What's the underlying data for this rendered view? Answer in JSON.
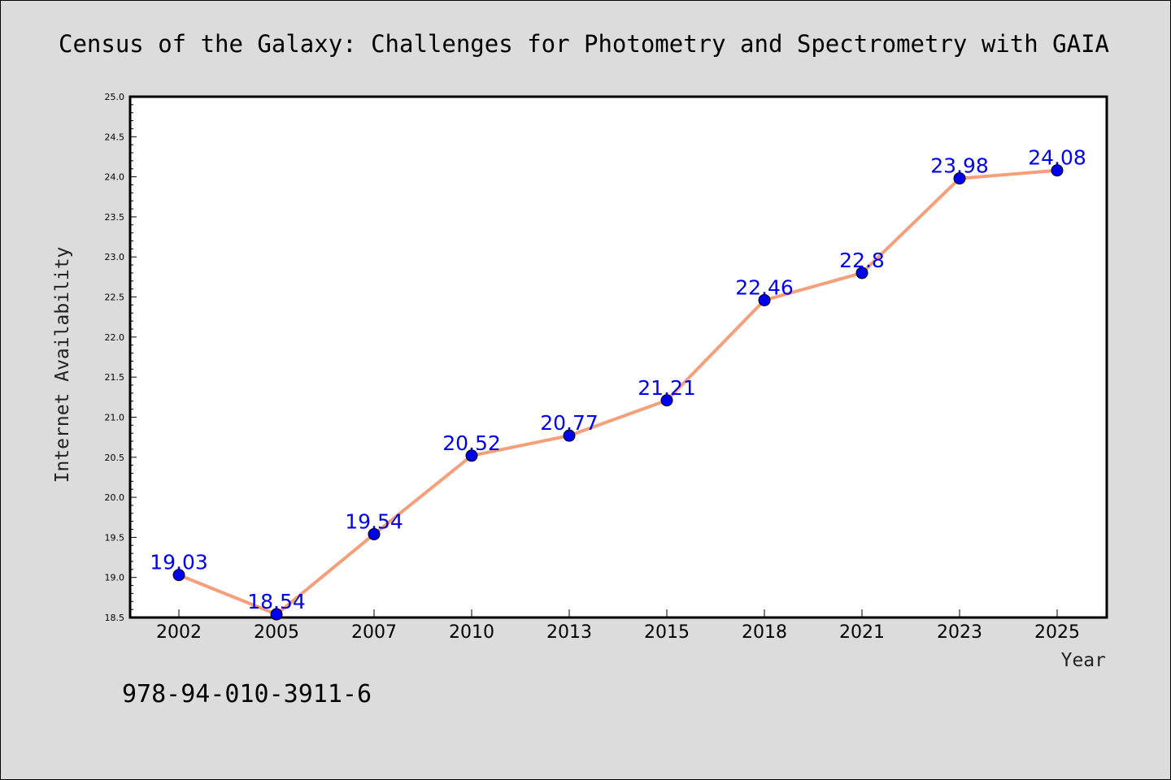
{
  "chart_data": {
    "type": "line",
    "title": "Census of the Galaxy: Challenges for Photometry and Spectrometry with GAIA",
    "xlabel": "Year",
    "ylabel": "Internet Availability",
    "categories": [
      "2002",
      "2005",
      "2007",
      "2010",
      "2013",
      "2015",
      "2018",
      "2021",
      "2023",
      "2025"
    ],
    "series": [
      {
        "values": [
          19.03,
          18.54,
          19.54,
          20.52,
          20.77,
          21.21,
          22.46,
          22.8,
          23.98,
          24.08
        ],
        "data_labels": [
          "19.03",
          "18.54",
          "19.54",
          "20.52",
          "20.77",
          "21.21",
          "22.46",
          "22.8",
          "23.98",
          "24.08"
        ],
        "line_color": "#f5a07a",
        "marker_color": "#0000ee",
        "label_color": "#0000ee"
      }
    ],
    "ylim": [
      18.5,
      25.0
    ],
    "yticks": [
      "18.5",
      "19.0",
      "19.5",
      "20.0",
      "20.5",
      "21.0",
      "21.5",
      "22.0",
      "22.5",
      "23.0",
      "23.5",
      "24.0",
      "24.5",
      "25.0"
    ],
    "grid": false,
    "legend": false
  },
  "annotation": {
    "isbn": "978-94-010-3911-6"
  },
  "colors": {
    "background": "#dcdcdc",
    "plot_background": "#ffffff"
  }
}
